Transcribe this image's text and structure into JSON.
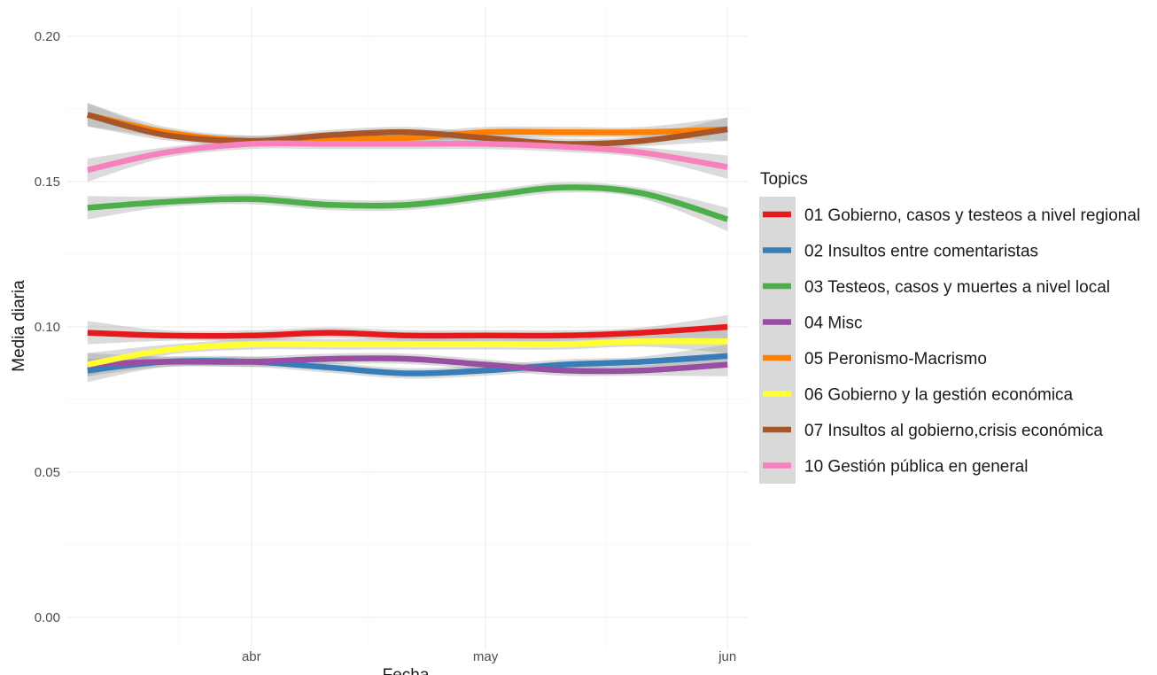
{
  "chart_data": {
    "type": "line",
    "title": "",
    "xlabel": "Fecha",
    "ylabel": "Media diaria",
    "ylim": [
      0,
      0.2
    ],
    "yticks": [
      0,
      0.05,
      0.1,
      0.15,
      0.2
    ],
    "ytick_labels": [
      "0.00",
      "0.05",
      "0.10",
      "0.15",
      "0.20"
    ],
    "xlim": [
      "2020-03-11",
      "2020-06-01"
    ],
    "xticks": [
      "2020-04-01",
      "2020-05-01",
      "2020-06-01"
    ],
    "xtick_labels": [
      "abr",
      "may",
      "jun"
    ],
    "grid": true,
    "legend_position": "right",
    "legend_title": "Topics",
    "x": [
      "2020-03-11",
      "2020-03-21",
      "2020-04-01",
      "2020-04-11",
      "2020-04-21",
      "2020-05-01",
      "2020-05-11",
      "2020-05-21",
      "2020-06-01"
    ],
    "series": [
      {
        "name": "01 Gobierno, casos y testeos a nivel regional",
        "color": "#e41a1c",
        "values": [
          0.098,
          0.097,
          0.097,
          0.098,
          0.097,
          0.097,
          0.097,
          0.098,
          0.1
        ]
      },
      {
        "name": "02 Insultos entre comentaristas",
        "color": "#377eb8",
        "values": [
          0.085,
          0.088,
          0.088,
          0.086,
          0.084,
          0.085,
          0.087,
          0.088,
          0.09
        ]
      },
      {
        "name": "03 Testeos, casos y muertes a nivel local",
        "color": "#4daf4a",
        "values": [
          0.141,
          0.143,
          0.144,
          0.142,
          0.142,
          0.145,
          0.148,
          0.146,
          0.137
        ]
      },
      {
        "name": "04 Misc",
        "color": "#984ea3",
        "values": [
          0.087,
          0.088,
          0.088,
          0.089,
          0.089,
          0.087,
          0.085,
          0.085,
          0.087
        ]
      },
      {
        "name": "05 Peronismo-Macrismo",
        "color": "#ff7f00",
        "values": [
          0.173,
          0.167,
          0.164,
          0.165,
          0.165,
          0.167,
          0.167,
          0.167,
          0.168
        ]
      },
      {
        "name": "06 Gobierno y la gestión económica",
        "color": "#ffff33",
        "values": [
          0.087,
          0.092,
          0.094,
          0.094,
          0.094,
          0.094,
          0.094,
          0.095,
          0.095
        ]
      },
      {
        "name": "07 Insultos al gobierno,crisis económica",
        "color": "#a65628",
        "values": [
          0.173,
          0.166,
          0.164,
          0.166,
          0.167,
          0.165,
          0.163,
          0.164,
          0.168
        ]
      },
      {
        "name": "10 Gestión pública en general",
        "color": "#f781bf",
        "values": [
          0.154,
          0.16,
          0.163,
          0.163,
          0.163,
          0.163,
          0.162,
          0.16,
          0.155
        ]
      }
    ]
  }
}
